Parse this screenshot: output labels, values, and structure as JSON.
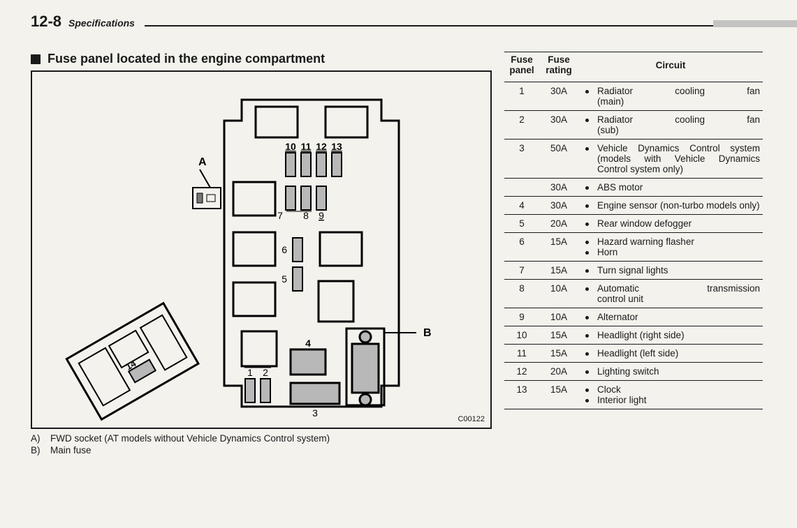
{
  "header": {
    "page_number": "12-8",
    "section": "Specifications"
  },
  "section_title": "Fuse panel located in the engine compartment",
  "diagram": {
    "code": "C00122",
    "labels": {
      "A": "A",
      "B": "B",
      "fuse_numbers": [
        "1",
        "2",
        "3",
        "4",
        "5",
        "6",
        "7",
        "8",
        "9",
        "10",
        "11",
        "12",
        "13",
        "14"
      ]
    }
  },
  "legend": [
    {
      "key": "A)",
      "text": "FWD socket (AT models without Vehicle Dynamics Control system)"
    },
    {
      "key": "B)",
      "text": "Main fuse"
    }
  ],
  "table": {
    "headers": {
      "panel": "Fuse panel",
      "rating": "Fuse rating",
      "circuit": "Circuit"
    },
    "rows": [
      {
        "panel": "1",
        "rating": "30A",
        "circuits": [
          {
            "t": "Radiator cooling fan (main)",
            "justify": true,
            "break_after": 3
          }
        ]
      },
      {
        "panel": "2",
        "rating": "30A",
        "circuits": [
          {
            "t": "Radiator cooling fan (sub)",
            "justify": true,
            "break_after": 3
          }
        ]
      },
      {
        "panel": "3",
        "rating": "50A",
        "circuits": [
          {
            "t": "Vehicle Dynamics Control system (models with Vehicle Dynamics Control system only)",
            "justify": true
          }
        ]
      },
      {
        "panel": "",
        "rating": "30A",
        "circuits": [
          {
            "t": "ABS motor"
          }
        ]
      },
      {
        "panel": "4",
        "rating": "30A",
        "circuits": [
          {
            "t": "Engine sensor (non-turbo models only)",
            "justify": true
          }
        ]
      },
      {
        "panel": "5",
        "rating": "20A",
        "circuits": [
          {
            "t": "Rear window defogger"
          }
        ]
      },
      {
        "panel": "6",
        "rating": "15A",
        "circuits": [
          {
            "t": "Hazard warning flasher"
          },
          {
            "t": "Horn"
          }
        ]
      },
      {
        "panel": "7",
        "rating": "15A",
        "circuits": [
          {
            "t": "Turn signal lights"
          }
        ]
      },
      {
        "panel": "8",
        "rating": "10A",
        "circuits": [
          {
            "t": "Automatic transmission control unit",
            "justify": true,
            "break_after": 2
          }
        ]
      },
      {
        "panel": "9",
        "rating": "10A",
        "circuits": [
          {
            "t": "Alternator"
          }
        ]
      },
      {
        "panel": "10",
        "rating": "15A",
        "circuits": [
          {
            "t": "Headlight (right side)"
          }
        ]
      },
      {
        "panel": "11",
        "rating": "15A",
        "circuits": [
          {
            "t": "Headlight (left side)"
          }
        ]
      },
      {
        "panel": "12",
        "rating": "20A",
        "circuits": [
          {
            "t": "Lighting switch"
          }
        ]
      },
      {
        "panel": "13",
        "rating": "15A",
        "circuits": [
          {
            "t": "Clock"
          },
          {
            "t": "Interior light"
          }
        ]
      }
    ]
  },
  "styling": {
    "background": "#f3f2ed",
    "text_color": "#1a1a1a",
    "rule_grey": "#c3c3c3",
    "diagram_fill_grey": "#b8b8b8",
    "font_family": "Arial",
    "page_num_fontsize": 22,
    "section_title_fontsize": 18,
    "body_fontsize": 13.5
  }
}
